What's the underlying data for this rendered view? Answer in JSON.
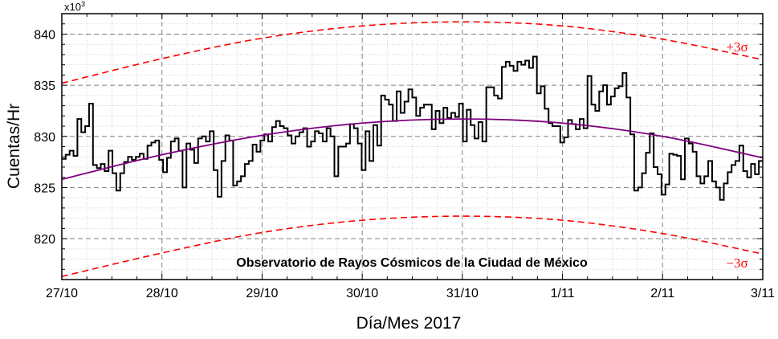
{
  "chart_data": {
    "type": "line",
    "title": "",
    "xlabel": "Día/Mes 2017",
    "ylabel": "Cuentas/Hr",
    "y_multiplier": "x10",
    "y_multiplier_exp": "3",
    "x_units": "days since 27/10/2017",
    "xlim": [
      0,
      7
    ],
    "ylim": [
      816,
      842
    ],
    "x_ticks": [
      {
        "value": 0,
        "label": "27/10"
      },
      {
        "value": 1,
        "label": "28/10"
      },
      {
        "value": 2,
        "label": "29/10"
      },
      {
        "value": 3,
        "label": "30/10"
      },
      {
        "value": 4,
        "label": "31/10"
      },
      {
        "value": 5,
        "label": "1/11"
      },
      {
        "value": 6,
        "label": "2/11"
      },
      {
        "value": 7,
        "label": "3/11"
      }
    ],
    "y_ticks": [
      {
        "value": 820,
        "label": "820"
      },
      {
        "value": 825,
        "label": "825"
      },
      {
        "value": 830,
        "label": "830"
      },
      {
        "value": 835,
        "label": "835"
      },
      {
        "value": 840,
        "label": "840"
      }
    ],
    "grid": true,
    "annotation": "Observatorio de Rayos Cósmicos de la Ciudad de México",
    "series": [
      {
        "name": "",
        "style": "step",
        "color": "#000000",
        "x_start": 0,
        "x_step": 0.04167,
        "values": [
          827.8,
          828.2,
          828.6,
          828.1,
          831.7,
          830.4,
          831.0,
          833.2,
          827.2,
          826.9,
          827.3,
          826.6,
          828.6,
          826.4,
          824.7,
          826.4,
          827.5,
          828.0,
          827.7,
          828.0,
          828.3,
          827.8,
          829.1,
          829.4,
          829.6,
          827.7,
          826.5,
          827.9,
          829.5,
          829.8,
          828.6,
          825.0,
          829.3,
          828.7,
          827.4,
          829.8,
          830.0,
          829.5,
          830.5,
          826.7,
          824.1,
          827.6,
          830.1,
          829.6,
          825.2,
          825.6,
          826.1,
          827.3,
          827.6,
          829.2,
          828.5,
          829.6,
          830.2,
          829.5,
          830.9,
          831.5,
          831.0,
          830.8,
          830.1,
          829.3,
          830.0,
          830.4,
          830.8,
          829.0,
          829.5,
          830.5,
          830.3,
          829.5,
          830.8,
          830.0,
          826.1,
          829.0,
          829.0,
          829.3,
          831.2,
          830.8,
          829.3,
          826.7,
          830.5,
          827.6,
          831.1,
          829.1,
          834.0,
          833.6,
          833.1,
          831.5,
          834.4,
          832.3,
          833.4,
          834.6,
          833.8,
          832.0,
          832.8,
          833.1,
          833.1,
          830.7,
          832.5,
          831.3,
          832.8,
          831.8,
          832.3,
          831.9,
          833.2,
          829.5,
          832.6,
          831.1,
          829.8,
          831.4,
          829.5,
          834.8,
          834.8,
          834.0,
          833.7,
          836.8,
          837.3,
          836.9,
          836.4,
          837.3,
          837.0,
          837.4,
          836.7,
          837.8,
          834.2,
          834.9,
          832.7,
          831.3,
          831.0,
          831.0,
          829.4,
          829.9,
          831.6,
          831.2,
          830.7,
          831.7,
          830.8,
          835.9,
          833.1,
          832.5,
          834.4,
          835.0,
          833.1,
          833.9,
          834.7,
          834.9,
          836.2,
          833.8,
          830.2,
          824.7,
          825.0,
          826.4,
          828.4,
          830.3,
          827.0,
          826.3,
          824.3,
          825.3,
          828.3,
          828.2,
          828.1,
          825.8,
          829.8,
          829.3,
          828.5,
          826.1,
          825.4,
          826.1,
          827.6,
          825.6,
          825.0,
          823.8,
          825.4,
          826.5,
          827.2,
          827.6,
          829.1,
          826.6,
          826.0,
          827.3,
          826.3,
          827.6
        ]
      },
      {
        "name": "",
        "style": "smooth",
        "color": "#800080",
        "x": [
          0,
          1,
          2,
          3,
          4,
          5,
          6,
          7
        ],
        "values": [
          825.8,
          828.2,
          830.1,
          831.3,
          831.7,
          831.3,
          830.0,
          827.9
        ]
      },
      {
        "name": "",
        "style": "dashed",
        "color": "#ff0000",
        "x": [
          0,
          1,
          2,
          3,
          4,
          5,
          6,
          7
        ],
        "values": [
          835.2,
          837.6,
          839.6,
          840.8,
          841.2,
          840.8,
          839.5,
          837.5
        ]
      },
      {
        "name": "",
        "style": "dashed",
        "color": "#ff0000",
        "x": [
          0,
          1,
          2,
          3,
          4,
          5,
          6,
          7
        ],
        "values": [
          816.3,
          818.6,
          820.6,
          821.8,
          822.2,
          821.8,
          820.5,
          818.5
        ]
      }
    ],
    "band_labels": {
      "upper": "+3σ",
      "lower": "−3σ",
      "color": "#ff0000"
    }
  }
}
